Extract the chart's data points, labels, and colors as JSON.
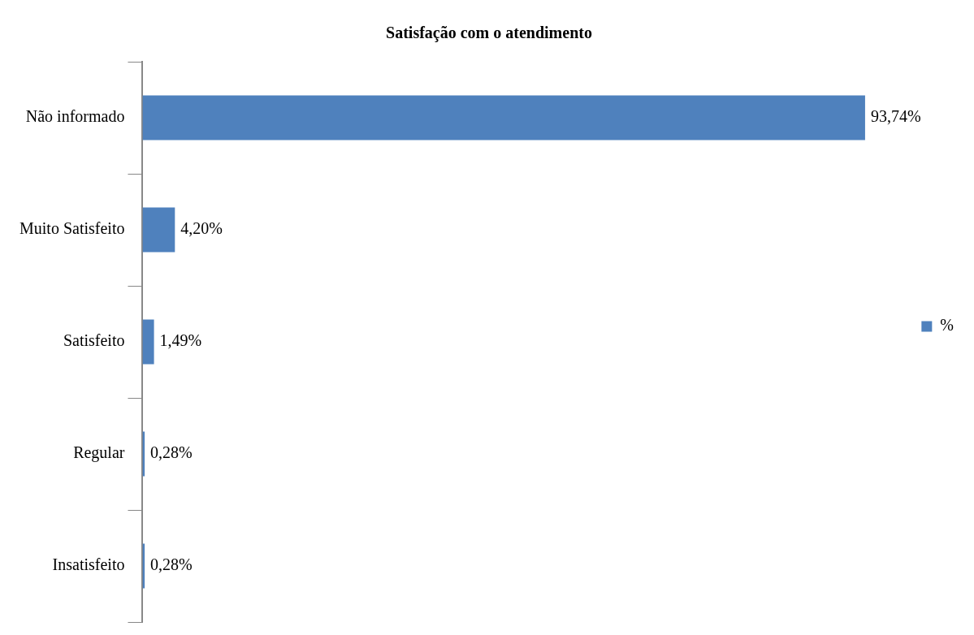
{
  "chart_data": {
    "type": "bar",
    "orientation": "horizontal",
    "title": "Satisfação com o atendimento",
    "categories": [
      "Não informado",
      "Muito Satisfeito",
      "Satisfeito",
      "Regular",
      "Insatisfeito"
    ],
    "series": [
      {
        "name": "%",
        "color": "#4f81bd",
        "values": [
          93.74,
          4.2,
          1.49,
          0.28,
          0.28
        ],
        "value_labels": [
          "93,74%",
          "4,20%",
          "1,49%",
          "0,28%",
          "0,28%"
        ]
      }
    ],
    "legend": "right",
    "grid": false
  }
}
